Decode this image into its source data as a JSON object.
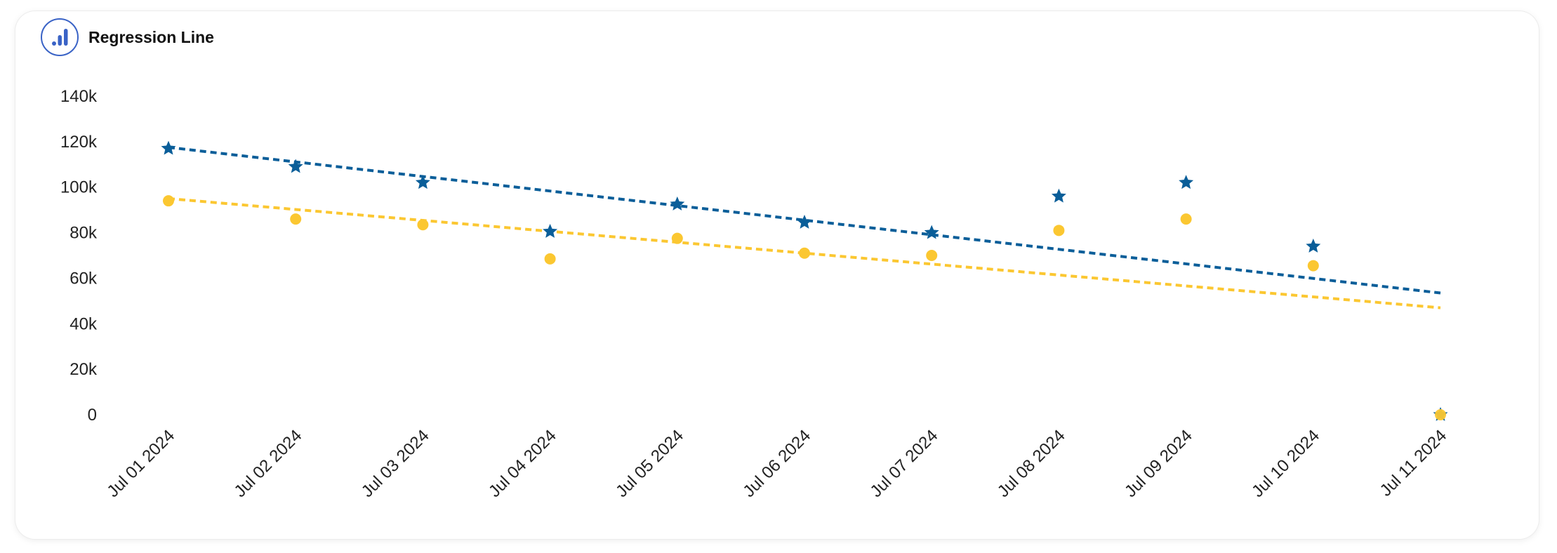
{
  "widget": {
    "title": "Regression Line",
    "icon": "bar-chart-icon"
  },
  "colors": {
    "series_star": "#0a5e99",
    "series_dot": "#fbc731",
    "logo": "#3a63c6",
    "axis_text": "#222222"
  },
  "chart_data": {
    "type": "scatter",
    "title": "Regression Line",
    "xlabel": "",
    "ylabel": "",
    "categories": [
      "Jul 01 2024",
      "Jul 02 2024",
      "Jul 03 2024",
      "Jul 04 2024",
      "Jul 05 2024",
      "Jul 06 2024",
      "Jul 07 2024",
      "Jul 08 2024",
      "Jul 09 2024",
      "Jul 10 2024",
      "Jul 11 2024"
    ],
    "ylim": [
      0,
      140000
    ],
    "yticks": [
      0,
      20000,
      40000,
      60000,
      80000,
      100000,
      120000,
      140000
    ],
    "ytick_labels": [
      "0",
      "20k",
      "40k",
      "60k",
      "80k",
      "100k",
      "120k",
      "140k"
    ],
    "grid": false,
    "legend": "none",
    "series": [
      {
        "marker": "star",
        "color": "#0a5e99",
        "values": [
          117000,
          109000,
          102000,
          80500,
          92500,
          84500,
          80000,
          96000,
          102000,
          74000,
          0
        ],
        "regression": {
          "start": 117500,
          "end": 53500
        }
      },
      {
        "marker": "circle",
        "color": "#fbc731",
        "values": [
          94000,
          86000,
          83500,
          68500,
          77500,
          71000,
          70000,
          81000,
          86000,
          65500,
          0
        ],
        "regression": {
          "start": 95000,
          "end": 47000
        }
      }
    ]
  }
}
